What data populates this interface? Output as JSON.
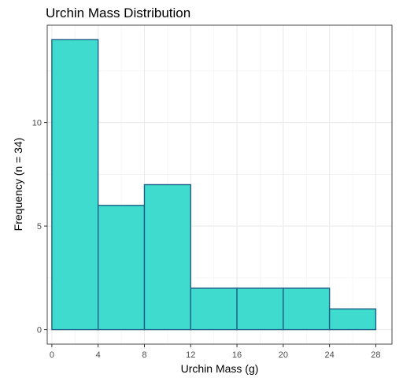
{
  "chart_data": {
    "type": "bar",
    "title": "Urchin Mass Distribution",
    "xlabel": "Urchin Mass (g)",
    "ylabel": "Frequency (n = 34)",
    "bin_edges": [
      0,
      4,
      8,
      12,
      16,
      20,
      24,
      28
    ],
    "values": [
      14,
      6,
      7,
      2,
      2,
      2,
      1
    ],
    "xlim": [
      -0.4,
      29.4
    ],
    "ylim": [
      -0.7,
      14.7
    ],
    "x_ticks": [
      0,
      4,
      8,
      12,
      16,
      20,
      24,
      28
    ],
    "x_tick_labels": [
      "0",
      "4",
      "8",
      "12",
      "16",
      "20",
      "24",
      "28"
    ],
    "y_ticks": [
      0,
      5,
      10
    ],
    "y_tick_labels": [
      "0",
      "5",
      "10"
    ],
    "grid": true,
    "colors": {
      "fill": "#40dbcf",
      "outline": "#1f5f86",
      "panel_border": "#333333",
      "grid": "#ebebeb"
    }
  }
}
